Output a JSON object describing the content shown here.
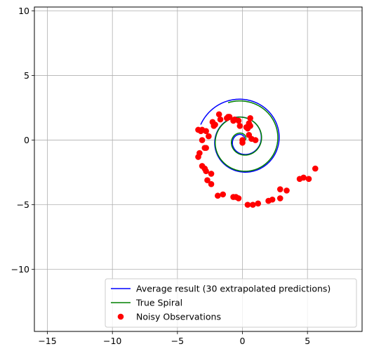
{
  "chart_data": {
    "type": "scatter",
    "title": "",
    "xlabel": "",
    "ylabel": "",
    "xlim": [
      -16,
      9.2
    ],
    "ylim": [
      -14.8,
      10.3
    ],
    "xticks": [
      -15,
      -10,
      -5,
      0,
      5
    ],
    "yticks": [
      10,
      5,
      0,
      -5,
      -10
    ],
    "xtick_labels": [
      "−15",
      "−10",
      "−5",
      "0",
      "5"
    ],
    "ytick_labels": [
      "10",
      "5",
      "0",
      "−5",
      "−10"
    ],
    "grid": true,
    "legend_position": "bottom-right",
    "series": [
      {
        "name": "Average result (30 extrapolated predictions)",
        "type": "line",
        "color": "#0000ff",
        "spiral": {
          "a": 0.05,
          "b": 0.22,
          "theta_start": 0,
          "theta_end": 15.35
        }
      },
      {
        "name": "True Spiral",
        "type": "line",
        "color": "#008000",
        "spiral": {
          "a": 0.2,
          "b": 0.2,
          "theta_start": 0,
          "theta_end": 14.5
        }
      },
      {
        "name": "Noisy Observations",
        "type": "scatter",
        "color": "#ff0000",
        "x": [
          1.0,
          0.7,
          0.5,
          0.0,
          0.0,
          0.4,
          0.6,
          0.5,
          0.6,
          0.3,
          -0.2,
          -0.3,
          -0.6,
          -0.7,
          -1.0,
          -1.1,
          -1.2,
          -1.7,
          -1.8,
          -2.1,
          -2.2,
          -2.3,
          -2.6,
          -2.8,
          -3.1,
          -3.2,
          -3.4,
          -3.1,
          -2.9,
          -2.8,
          -3.3,
          -3.4,
          -3.1,
          -2.9,
          -2.8,
          -2.4,
          -2.7,
          -2.4,
          -1.9,
          -1.5,
          -0.7,
          -0.5,
          -0.3,
          0.4,
          0.8,
          1.2,
          2.0,
          2.3,
          2.9,
          2.9,
          3.4,
          4.4,
          4.7,
          5.1,
          5.6
        ],
        "y": [
          0.0,
          0.1,
          0.4,
          0.0,
          -0.2,
          0.9,
          1.1,
          1.3,
          1.7,
          1.0,
          1.1,
          1.5,
          1.6,
          1.5,
          1.8,
          1.8,
          1.7,
          1.6,
          2.0,
          1.2,
          1.1,
          1.4,
          0.3,
          0.7,
          0.8,
          0.7,
          0.8,
          0.0,
          -0.6,
          -0.6,
          -1.0,
          -1.3,
          -2.0,
          -2.2,
          -2.4,
          -2.6,
          -3.1,
          -3.4,
          -4.3,
          -4.2,
          -4.4,
          -4.4,
          -4.5,
          -5.0,
          -5.0,
          -4.9,
          -4.7,
          -4.6,
          -4.5,
          -3.8,
          -3.9,
          -3.0,
          -2.9,
          -3.0,
          -2.2
        ]
      }
    ]
  }
}
